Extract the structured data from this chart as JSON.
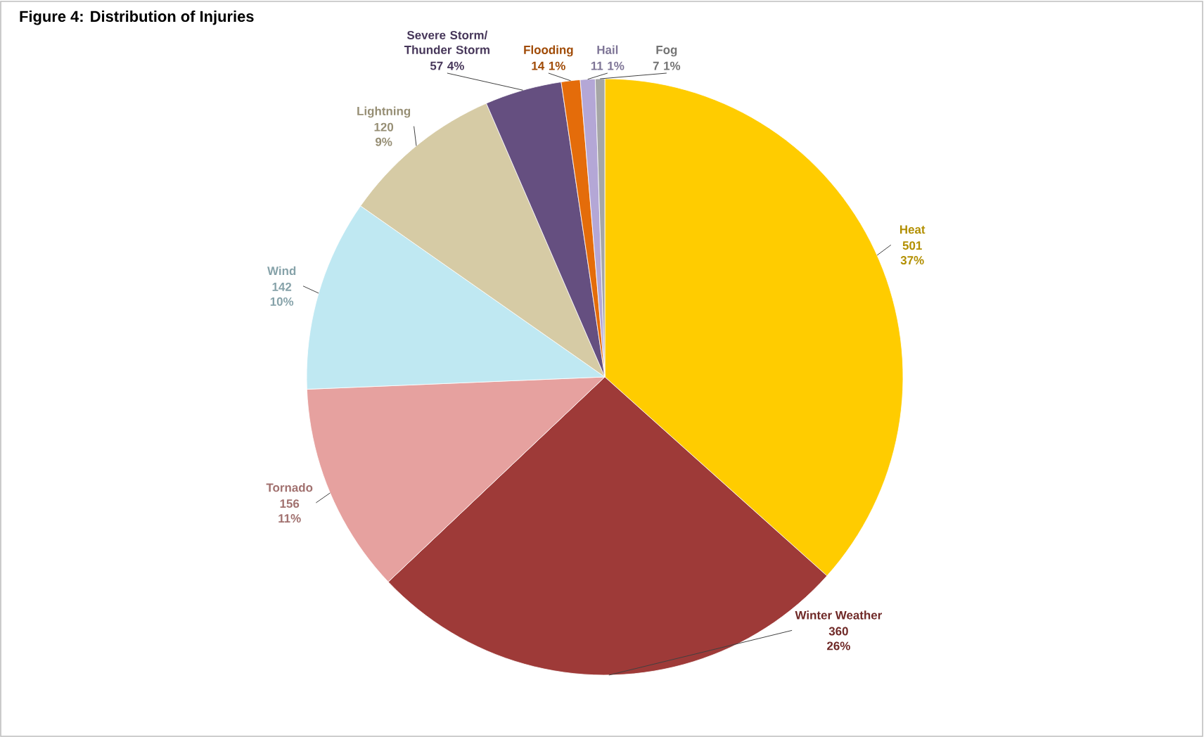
{
  "chart_data": {
    "type": "pie",
    "title": "Figure 4: Distribution of Injuries",
    "categories": [
      "Heat",
      "Winter Weather",
      "Tornado",
      "Wind",
      "Lightning",
      "Severe Storm/ Thunder Storm",
      "Flooding",
      "Hail",
      "Fog"
    ],
    "values": [
      501,
      360,
      156,
      142,
      120,
      57,
      14,
      11,
      7
    ],
    "colors": [
      "#ffcc00",
      "#9e3a38",
      "#e6a19f",
      "#bfe8f2",
      "#d6cba5",
      "#654f80",
      "#e46c0a",
      "#b4a7d6",
      "#a6a6a6"
    ],
    "value_labels": [
      "501 37%",
      "360 26%",
      "156 11%",
      "142 10%",
      "120 9%",
      "57 4%",
      "14 1%",
      "11 1%",
      "7 1%"
    ]
  }
}
